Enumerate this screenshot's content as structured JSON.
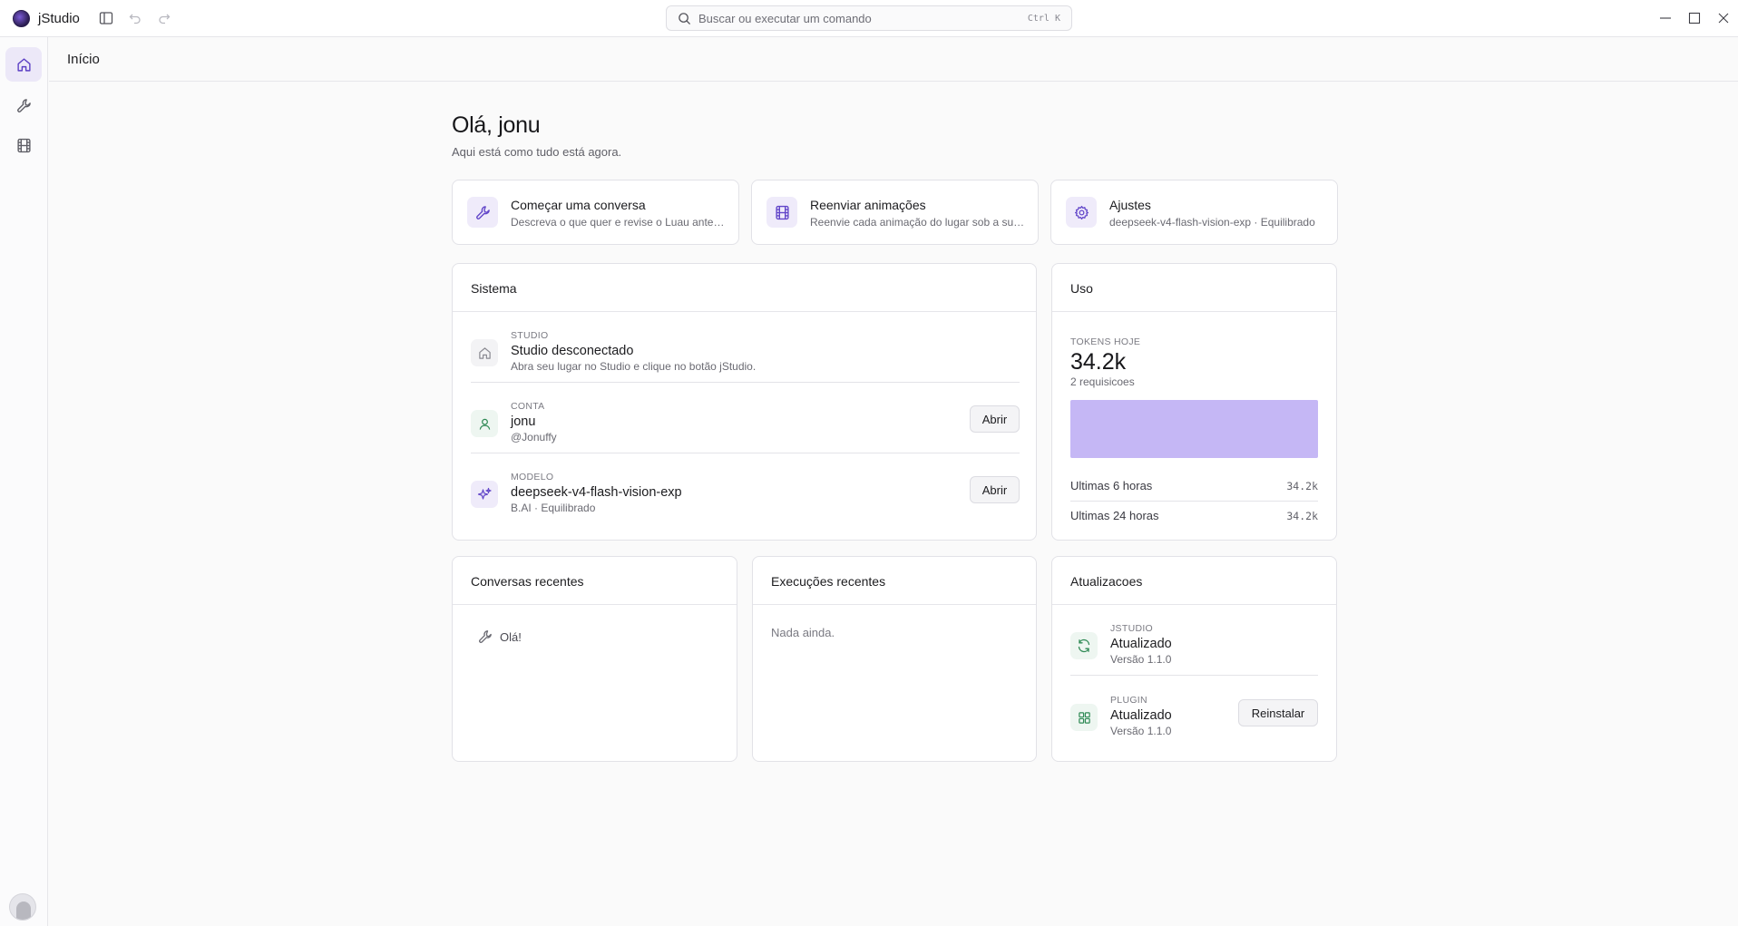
{
  "app": {
    "name": "jStudio",
    "search_placeholder": "Buscar ou executar um comando",
    "search_shortcut": "Ctrl K"
  },
  "header": {
    "breadcrumb": "Início"
  },
  "greeting": {
    "title": "Olá, jonu",
    "subtitle": "Aqui está como tudo está agora."
  },
  "quick_actions": [
    {
      "title": "Começar uma conversa",
      "desc": "Descreva o que quer e revise o Luau antes de aplicar",
      "icon": "wrench-icon"
    },
    {
      "title": "Reenviar animações",
      "desc": "Reenvie cada animação do lugar sob a sua conta",
      "icon": "film-icon"
    },
    {
      "title": "Ajustes",
      "desc": "deepseek-v4-flash-vision-exp · Equilibrado",
      "icon": "gear-icon"
    }
  ],
  "system": {
    "title": "Sistema",
    "rows": [
      {
        "caption": "STUDIO",
        "main": "Studio desconectado",
        "sub": "Abra seu lugar no Studio e clique no botão jStudio.",
        "icon": "home-icon"
      },
      {
        "caption": "CONTA",
        "main": "jonu",
        "sub": "@Jonuffy",
        "icon": "user-icon",
        "button": "Abrir"
      },
      {
        "caption": "MODELO",
        "main": "deepseek-v4-flash-vision-exp",
        "sub": "B.AI · Equilibrado",
        "icon": "sparkle-icon",
        "button": "Abrir"
      }
    ]
  },
  "usage": {
    "title": "Uso",
    "caption": "TOKENS HOJE",
    "value": "34.2k",
    "requests": "2 requisicoes",
    "bar_fill_fraction": 1.0,
    "rows": [
      {
        "label": "Ultimas 6 horas",
        "value": "34.2k"
      },
      {
        "label": "Ultimas 24 horas",
        "value": "34.2k"
      }
    ]
  },
  "recent_conversations": {
    "title": "Conversas recentes",
    "items": [
      {
        "label": "Olá!",
        "icon": "wrench-icon"
      }
    ]
  },
  "recent_runs": {
    "title": "Execuções recentes",
    "empty": "Nada ainda."
  },
  "updates": {
    "title": "Atualizacoes",
    "rows": [
      {
        "caption": "JSTUDIO",
        "main": "Atualizado",
        "sub": "Versão 1.1.0",
        "icon": "refresh-icon"
      },
      {
        "caption": "PLUGIN",
        "main": "Atualizado",
        "sub": "Versão 1.1.0",
        "icon": "grid-icon",
        "button": "Reinstalar"
      }
    ]
  },
  "colors": {
    "accent": "#6246c9",
    "accent_soft": "#efebfa",
    "bar": "#c5b7f5",
    "success": "#2f8a55"
  }
}
